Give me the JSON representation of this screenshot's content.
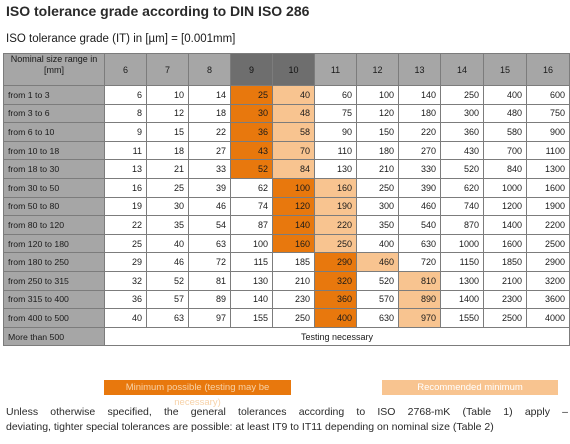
{
  "title": "ISO tolerance grade according to DIN ISO 286",
  "subtitle": "ISO tolerance grade (IT) in [µm] = [0.001mm]",
  "table": {
    "header_label": "Nominal size range in [mm]",
    "columns": [
      "6",
      "7",
      "8",
      "9",
      "10",
      "11",
      "12",
      "13",
      "14",
      "15",
      "16"
    ],
    "rows": [
      {
        "label": "from 1 to 3",
        "values": [
          "6",
          "10",
          "14",
          "25",
          "40",
          "60",
          "100",
          "140",
          "250",
          "400",
          "600"
        ]
      },
      {
        "label": "from 3 to 6",
        "values": [
          "8",
          "12",
          "18",
          "30",
          "48",
          "75",
          "120",
          "180",
          "300",
          "480",
          "750"
        ]
      },
      {
        "label": "from 6 to 10",
        "values": [
          "9",
          "15",
          "22",
          "36",
          "58",
          "90",
          "150",
          "220",
          "360",
          "580",
          "900"
        ]
      },
      {
        "label": "from 10 to 18",
        "values": [
          "11",
          "18",
          "27",
          "43",
          "70",
          "110",
          "180",
          "270",
          "430",
          "700",
          "1100"
        ]
      },
      {
        "label": "from 18 to 30",
        "values": [
          "13",
          "21",
          "33",
          "52",
          "84",
          "130",
          "210",
          "330",
          "520",
          "840",
          "1300"
        ]
      },
      {
        "label": "from 30 to 50",
        "values": [
          "16",
          "25",
          "39",
          "62",
          "100",
          "160",
          "250",
          "390",
          "620",
          "1000",
          "1600"
        ]
      },
      {
        "label": "from 50 to 80",
        "values": [
          "19",
          "30",
          "46",
          "74",
          "120",
          "190",
          "300",
          "460",
          "740",
          "1200",
          "1900"
        ]
      },
      {
        "label": "from 80 to 120",
        "values": [
          "22",
          "35",
          "54",
          "87",
          "140",
          "220",
          "350",
          "540",
          "870",
          "1400",
          "2200"
        ]
      },
      {
        "label": "from 120 to 180",
        "values": [
          "25",
          "40",
          "63",
          "100",
          "160",
          "250",
          "400",
          "630",
          "1000",
          "1600",
          "2500"
        ]
      },
      {
        "label": "from 180 to 250",
        "values": [
          "29",
          "46",
          "72",
          "115",
          "185",
          "290",
          "460",
          "720",
          "1150",
          "1850",
          "2900"
        ]
      },
      {
        "label": "from 250 to 315",
        "values": [
          "32",
          "52",
          "81",
          "130",
          "210",
          "320",
          "520",
          "810",
          "1300",
          "2100",
          "3200"
        ]
      },
      {
        "label": "from 315 to 400",
        "values": [
          "36",
          "57",
          "89",
          "140",
          "230",
          "360",
          "570",
          "890",
          "1400",
          "2300",
          "3600"
        ]
      },
      {
        "label": "from 400 to 500",
        "values": [
          "40",
          "63",
          "97",
          "155",
          "250",
          "400",
          "630",
          "970",
          "1550",
          "2500",
          "4000"
        ]
      }
    ],
    "last_row": {
      "label": "More than 500",
      "text": "Testing necessary"
    }
  },
  "legend": {
    "minimum": "Minimum possible (testing may be necessary)",
    "recommended": "Recommended minimum"
  },
  "colors": {
    "minimum": "#e8780d",
    "recommended": "#f8c490",
    "header": "#a6a6a6",
    "header_dark": "#6e6e6e"
  },
  "note": {
    "line1": "Unless otherwise specified, the general tolerances according to ISO 2768-mK (Table 1) apply –",
    "line2": "deviating, tighter special tolerances are possible: at least IT9 to IT11 depending on nominal size (Table 2)"
  }
}
